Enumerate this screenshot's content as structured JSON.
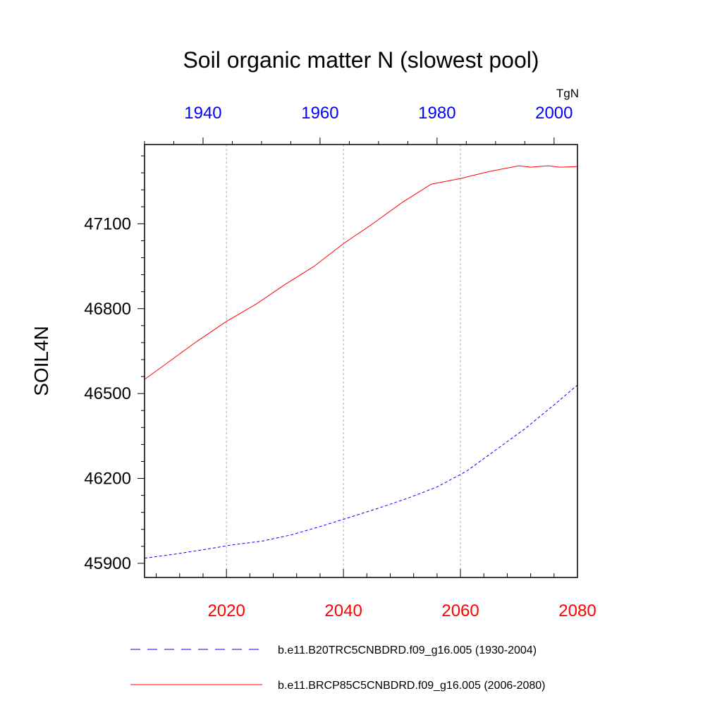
{
  "chart_data": {
    "type": "line",
    "title": "Soil organic matter N (slowest pool)",
    "units": "TgN",
    "ylabel": "SOIL4N",
    "xlabel": "",
    "ylim": [
      45850,
      47380
    ],
    "yticks": [
      45900,
      46200,
      46500,
      46800,
      47100
    ],
    "grid": "vertical dotted",
    "legend": "bottom",
    "colors": {
      "hist": "#0000ff",
      "future": "#ff0000"
    },
    "bottom_axis": {
      "range": [
        2006,
        2080
      ],
      "ticks": [
        "2020",
        "2040",
        "2060",
        "2080"
      ],
      "tick_values": [
        2020,
        2040,
        2060,
        2080
      ]
    },
    "top_axis": {
      "range": [
        1930,
        2004
      ],
      "ticks": [
        "1940",
        "1960",
        "1980",
        "2000"
      ],
      "tick_values": [
        1940,
        1960,
        1980,
        2000
      ]
    },
    "series": [
      {
        "name": "b.e11.B20TRC5CNBDRD.f09_g16.005 (1930-2004)",
        "axis": "top",
        "style": "dashed",
        "x": [
          1930,
          1935,
          1940,
          1945,
          1950,
          1955,
          1960,
          1965,
          1970,
          1975,
          1980,
          1985,
          1990,
          1995,
          2000,
          2004
        ],
        "values": [
          45918,
          45932,
          45948,
          45965,
          45978,
          46000,
          46030,
          46062,
          46095,
          46130,
          46170,
          46225,
          46300,
          46375,
          46460,
          46530
        ]
      },
      {
        "name": "b.e11.BRCP85C5CNBDRD.f09_g16.005 (2006-2080)",
        "axis": "bottom",
        "style": "solid",
        "x": [
          2006,
          2010,
          2015,
          2020,
          2025,
          2030,
          2035,
          2040,
          2045,
          2050,
          2055,
          2060,
          2062,
          2065,
          2070,
          2072,
          2075,
          2077,
          2080
        ],
        "values": [
          46550,
          46610,
          46685,
          46755,
          46815,
          46885,
          46950,
          47030,
          47100,
          47175,
          47240,
          47260,
          47270,
          47285,
          47305,
          47300,
          47305,
          47300,
          47302
        ]
      }
    ]
  }
}
